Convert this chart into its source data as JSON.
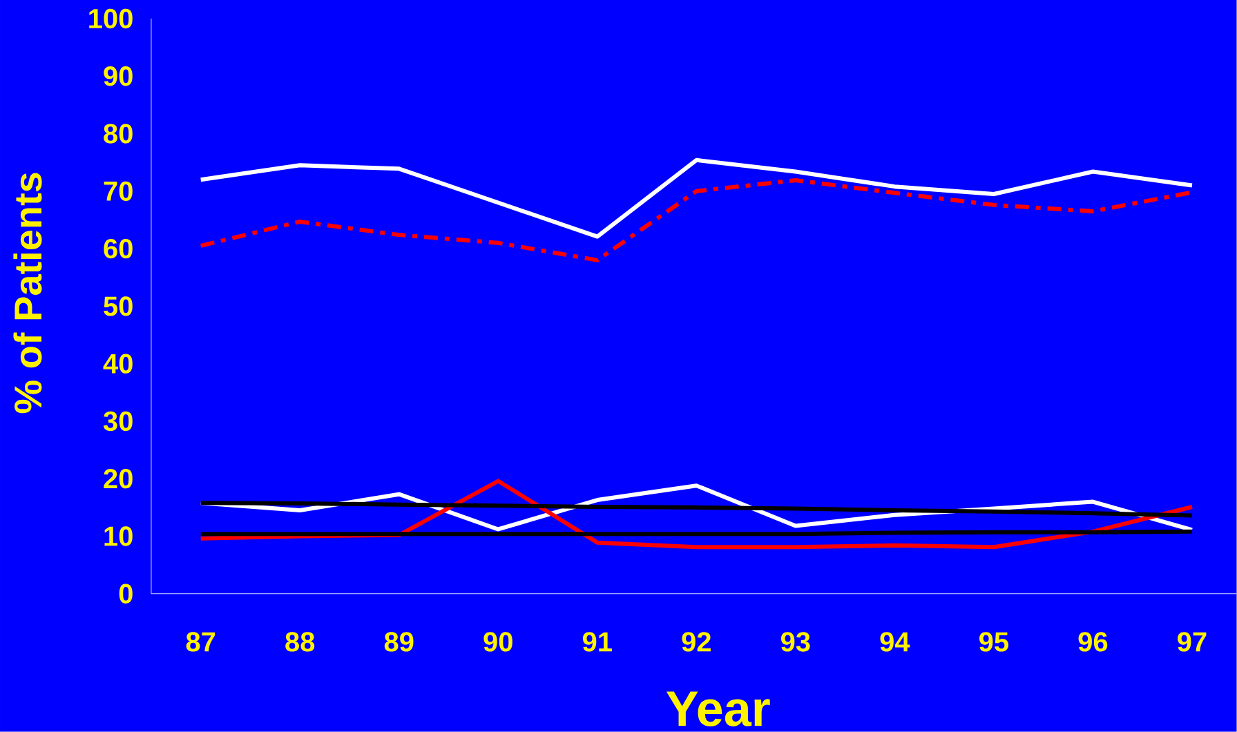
{
  "chart_data": {
    "type": "line",
    "xlabel": "Year",
    "ylabel": "% of Patients",
    "categories": [
      "87",
      "88",
      "89",
      "90",
      "91",
      "92",
      "93",
      "94",
      "95",
      "96",
      "97"
    ],
    "ylim": [
      0,
      100
    ],
    "yticks": [
      0,
      10,
      20,
      30,
      40,
      50,
      60,
      70,
      80,
      90,
      100
    ],
    "grid": false,
    "marker": "none",
    "series": [
      {
        "color": "#ffffff",
        "values": [
          72.0,
          74.5,
          73.9,
          68.0,
          62.1,
          75.4,
          73.4,
          70.8,
          69.5,
          73.4,
          71.0
        ]
      },
      {
        "color": "#ff0000",
        "line_style": "dashed",
        "values": [
          60.5,
          64.7,
          62.4,
          61.0,
          58.0,
          70.0,
          71.9,
          69.7,
          67.6,
          66.5,
          69.8
        ]
      },
      {
        "color": "#ffffff",
        "values": [
          15.8,
          14.5,
          17.3,
          11.2,
          16.3,
          18.8,
          11.8,
          13.7,
          14.8,
          16.0,
          11.1
        ]
      },
      {
        "color": "#ff0000",
        "values": [
          9.6,
          10.0,
          10.2,
          19.6,
          8.9,
          8.1,
          8.1,
          8.4,
          8.1,
          10.8,
          15.1
        ]
      },
      {
        "color": "#000000",
        "values": [
          15.8,
          15.7,
          15.5,
          15.3,
          15.1,
          15.0,
          14.8,
          14.5,
          14.3,
          14.0,
          13.6
        ]
      },
      {
        "color": "#000000",
        "values": [
          10.4,
          10.4,
          10.4,
          10.4,
          10.4,
          10.4,
          10.4,
          10.6,
          10.7,
          10.7,
          10.8
        ]
      }
    ]
  }
}
